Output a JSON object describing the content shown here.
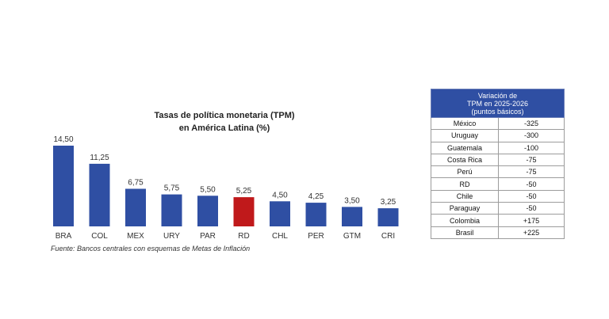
{
  "chart_data": {
    "type": "bar",
    "title_lines": [
      "Tasas de política monetaria (TPM)",
      "en América Latina (%)"
    ],
    "categories": [
      "BRA",
      "COL",
      "MEX",
      "URY",
      "PAR",
      "RD",
      "CHL",
      "PER",
      "GTM",
      "CRI"
    ],
    "values": [
      14.5,
      11.25,
      6.75,
      5.75,
      5.5,
      5.25,
      4.5,
      4.25,
      3.5,
      3.25
    ],
    "value_labels": [
      "14,50",
      "11,25",
      "6,75",
      "5,75",
      "5,50",
      "5,25",
      "4,50",
      "4,25",
      "3,50",
      "3,25"
    ],
    "highlight_category": "RD",
    "colors": {
      "bar": "#2f4fa3",
      "highlight": "#c0191b"
    },
    "ylim": [
      0,
      14.5
    ],
    "grid": false,
    "source_note": "Fuente: Bancos centrales con esquemas de Metas de Inflación"
  },
  "table": {
    "header": [
      "Variación de",
      "TPM en 2025-2026",
      "(puntos básicos)"
    ],
    "rows": [
      [
        "México",
        "-325"
      ],
      [
        "Uruguay",
        "-300"
      ],
      [
        "Guatemala",
        "-100"
      ],
      [
        "Costa Rica",
        "-75"
      ],
      [
        "Perú",
        "-75"
      ],
      [
        "RD",
        "-50"
      ],
      [
        "Chile",
        "-50"
      ],
      [
        "Paraguay",
        "-50"
      ],
      [
        "Colombia",
        "+175"
      ],
      [
        "Brasil",
        "+225"
      ]
    ]
  }
}
